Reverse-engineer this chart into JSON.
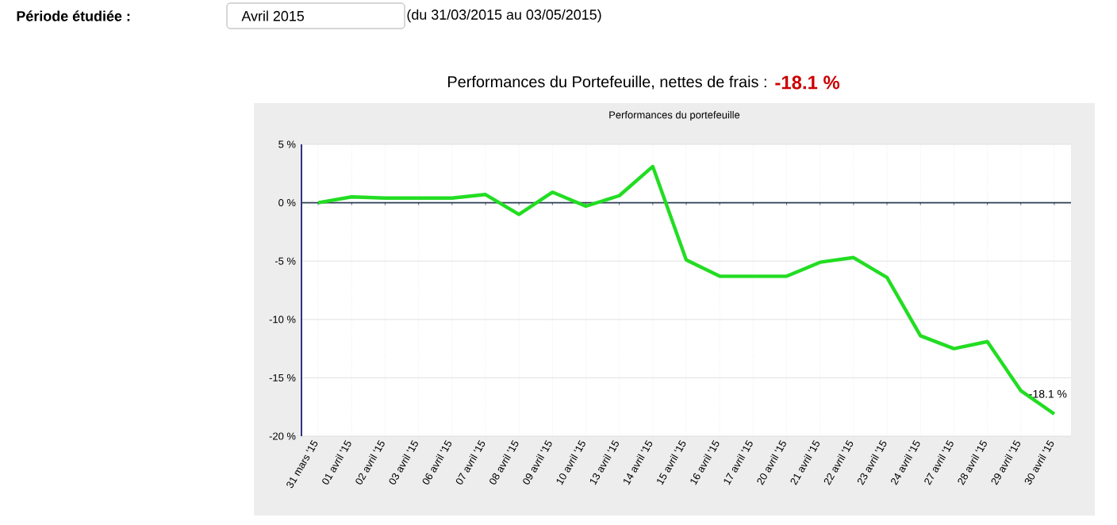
{
  "chart_data": {
    "type": "line",
    "title": "Performances du Portefeuille, nettes de frais  :",
    "subtitle": "Performances du portefeuille",
    "annotations": [
      "Période étudiée :",
      "Avril 2015",
      "(du 31/03/2015 au 03/05/2015)",
      "-18.1 %",
      {
        "text": "-18.1 %",
        "x": "30 avril '15",
        "y": -18.1
      }
    ],
    "categories": [
      "31 mars '15",
      "01 avril '15",
      "02 avril '15",
      "03 avril '15",
      "06 avril '15",
      "07 avril '15",
      "08 avril '15",
      "09 avril '15",
      "10 avril '15",
      "13 avril '15",
      "14 avril '15",
      "15 avril '15",
      "16 avril '15",
      "17 avril '15",
      "20 avril '15",
      "21 avril '15",
      "22 avril '15",
      "23 avril '15",
      "24 avril '15",
      "27 avril '15",
      "28 avril '15",
      "29 avril '15",
      "30 avril '15"
    ],
    "series": [
      {
        "color": "#22dd22",
        "values": [
          0,
          0.5,
          0.4,
          0.4,
          0.4,
          0.7,
          -1.0,
          0.9,
          -0.3,
          0.6,
          3.1,
          -4.9,
          -6.3,
          -6.3,
          -6.3,
          -5.1,
          -4.7,
          -6.4,
          -11.4,
          -12.5,
          -11.9,
          -16.1,
          -18.1
        ]
      }
    ],
    "ylim": [
      -20,
      5
    ],
    "yticks": [
      {
        "value": -20,
        "label": "-20 %"
      },
      {
        "value": -15,
        "label": "-15 %"
      },
      {
        "value": -10,
        "label": "-10 %"
      },
      {
        "value": -5,
        "label": "-5 %"
      },
      {
        "value": 0,
        "label": "0 %"
      },
      {
        "value": 5,
        "label": "5 %"
      }
    ],
    "ref_lines": [
      {
        "axis": "y",
        "value": 0,
        "color": "#2c3e55"
      }
    ],
    "grid": true,
    "marker": "none",
    "line_style": "solid"
  }
}
